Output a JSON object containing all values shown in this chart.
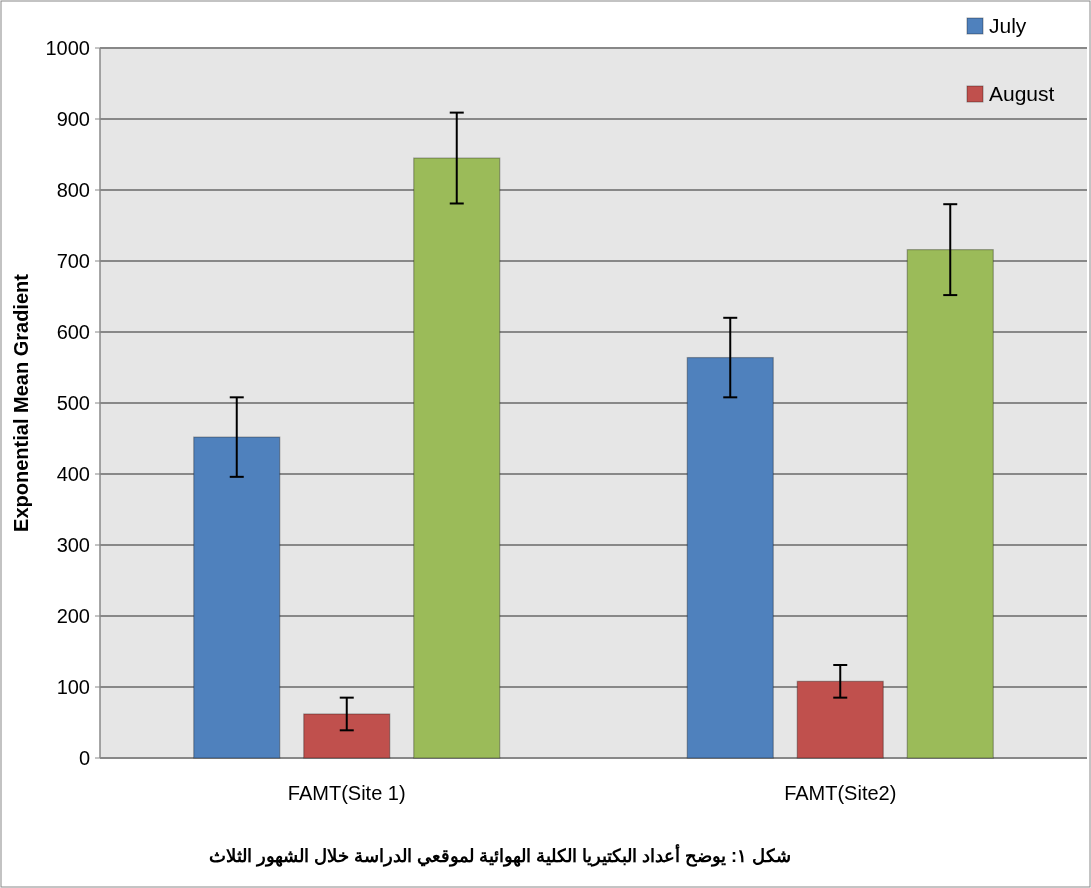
{
  "chart_data": {
    "type": "bar",
    "ylabel": "Exponential Mean Gradient",
    "categories": [
      "FAMT(Site 1)",
      "FAMT(Site2)"
    ],
    "series": [
      {
        "name": "July",
        "color": "#4f81bd",
        "values": [
          452,
          564
        ],
        "errors": [
          56,
          56
        ]
      },
      {
        "name": "August",
        "color": "#c0504d",
        "values": [
          62,
          108
        ],
        "errors": [
          23,
          23
        ]
      },
      {
        "color": "#9bbb59",
        "values": [
          845,
          716
        ],
        "errors": [
          64,
          64
        ]
      }
    ],
    "ylim": [
      0,
      1000
    ],
    "yticks": [
      0,
      100,
      200,
      300,
      400,
      500,
      600,
      700,
      800,
      900,
      1000
    ],
    "grid": "y",
    "legend": "top right",
    "annotations": [
      "شكل ١: يوضح أعداد البكتيريا الكلية الهوائية لموقعي الدراسة خلال الشهور الثلاث"
    ]
  }
}
